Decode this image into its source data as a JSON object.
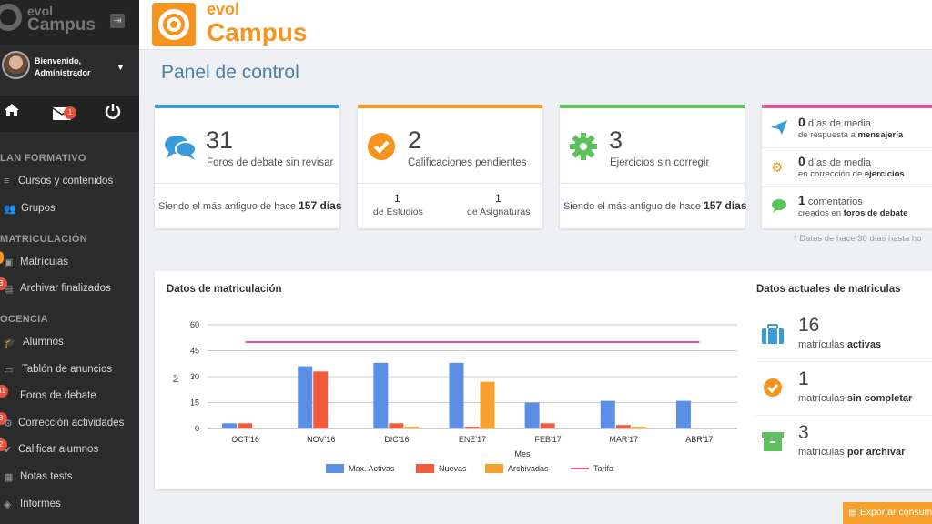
{
  "sidebar": {
    "logo_evol": "evol",
    "logo_campus": "Campus",
    "welcome_line1": "Bienvenido,",
    "welcome_line2": "Administrador",
    "mail_badge": "1",
    "sections": [
      {
        "title": "LAN FORMATIVO"
      },
      {
        "title": "MATRICULACIÓN"
      },
      {
        "title": "OCENCIA"
      }
    ],
    "items": [
      {
        "label": "Cursos y contenidos",
        "icon": "database-icon"
      },
      {
        "label": "Grupos",
        "icon": "users-icon"
      },
      {
        "label": "Matrículas",
        "icon": "briefcase-icon",
        "badge": ""
      },
      {
        "label": "Archivar finalizados",
        "icon": "archive-icon",
        "badge": "3"
      },
      {
        "label": "Alumnos",
        "icon": "graduation-cap-icon"
      },
      {
        "label": "Tablón de anuncios",
        "icon": "board-icon"
      },
      {
        "label": "Foros de debate",
        "icon": "comments-icon",
        "badge": "31"
      },
      {
        "label": "Corrección actividades",
        "icon": "gear-icon",
        "badge": "3"
      },
      {
        "label": "Calificar alumnos",
        "icon": "check-icon",
        "badge": "2"
      },
      {
        "label": "Notas tests",
        "icon": "list-icon"
      },
      {
        "label": "Informes",
        "icon": "report-icon"
      }
    ]
  },
  "brand": {
    "evol": "evol",
    "campus": "Campus"
  },
  "page_title": "Panel de control",
  "cards": {
    "forums": {
      "value": "31",
      "label": "Foros de debate sin revisar",
      "footer_prefix": "Siendo el más antiguo de hace",
      "footer_value": "157 días",
      "color": "#3a9bd9"
    },
    "grades": {
      "value": "2",
      "label": "Calificaciones pendientes",
      "left_value": "1",
      "left_label": "de Estudios",
      "right_value": "1",
      "right_label": "de Asignaturas",
      "color": "#f7941d"
    },
    "exercises": {
      "value": "3",
      "label": "Ejercicios sin corregir",
      "footer_prefix": "Siendo el más antiguo de hace",
      "footer_value": "157 días",
      "color": "#5cc35c"
    }
  },
  "averages": {
    "color": "#e8559a",
    "rows": [
      {
        "value": "0",
        "unit": "días de media",
        "l2_prefix": "de respuesta a",
        "l2_bold": "mensajería"
      },
      {
        "value": "0",
        "unit": "días de media",
        "l2_prefix": "en corrección de",
        "l2_bold": "ejercicios"
      },
      {
        "value": "1",
        "unit": "comentarios",
        "l2_prefix": "creados en",
        "l2_bold": "foros de debate"
      }
    ],
    "note": "* Datos de hace 30 días hasta ho"
  },
  "enrollment_panel": {
    "title": "Datos de matriculación",
    "right_title": "Datos actuales de matriculas",
    "current": [
      {
        "value": "16",
        "text": "matrículas",
        "bold": "activas",
        "icon": "briefcase-icon",
        "color": "#3a9bd9"
      },
      {
        "value": "1",
        "text": "matrículas",
        "bold": "sin completar",
        "icon": "check-circle-icon",
        "color": "#f7941d"
      },
      {
        "value": "3",
        "text": "matrículas",
        "bold": "por archivar",
        "icon": "archive-icon",
        "color": "#5cc35c"
      }
    ]
  },
  "chart_data": {
    "type": "bar",
    "xlabel": "Mes",
    "ylabel": "Nº",
    "ylim": [
      0,
      60
    ],
    "yticks": [
      0,
      15,
      30,
      45,
      60
    ],
    "categories": [
      "OCT'16",
      "NOV'16",
      "DIC'16",
      "ENE'17",
      "FEB'17",
      "MAR'17",
      "ABR'17"
    ],
    "series": [
      {
        "name": "Max. Activas",
        "type": "bar",
        "color": "#5b8fe6",
        "values": [
          3,
          36,
          38,
          38,
          15,
          16,
          16
        ]
      },
      {
        "name": "Nuevas",
        "type": "bar",
        "color": "#f25c3c",
        "values": [
          3,
          33,
          3,
          1,
          3,
          2,
          0
        ]
      },
      {
        "name": "Archivadas",
        "type": "bar",
        "color": "#f7a12c",
        "values": [
          0,
          0,
          1,
          27,
          0,
          1,
          0
        ]
      },
      {
        "name": "Tarifa",
        "type": "line",
        "color": "#e8559a",
        "values": [
          50,
          50,
          50,
          50,
          50,
          50,
          50
        ]
      }
    ],
    "legend": "bottom",
    "grid": true
  },
  "export_button": "Exportar consum"
}
